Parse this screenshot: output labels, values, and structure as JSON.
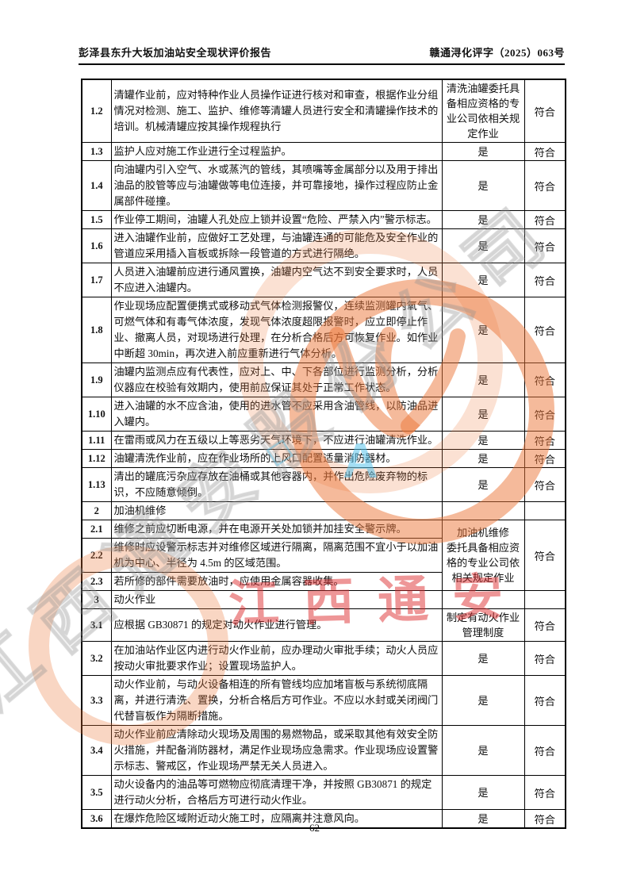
{
  "header": {
    "title_left": "彭泽县东升大坂加油站安全现状评价报告",
    "doc_number_right": "赣通浔化评字（2025）063号"
  },
  "footer": {
    "page_number": "62"
  },
  "watermark": {
    "red_text": "江西通安",
    "red_color": "#de2d30",
    "diagonal_text": "江西通安股份公司",
    "stamp_color": "#ec7637",
    "blue_mark": "A",
    "blue_diamond": "◇",
    "blue_color": "#58c2eb"
  },
  "table": {
    "rows": [
      {
        "no": "1.2",
        "desc": "清罐作业前，应对特种作业人员操作证进行核对和审查，根据作业分组情况对检测、施工、监护、维修等清罐人员进行安全和清罐操作技术的培训。机械清罐应按其操作规程执行",
        "status": "清洗油罐委托具备相应资格的专业公司依相关规定作业",
        "conclusion": "符合"
      },
      {
        "no": "1.3",
        "desc": "监护人应对施工作业进行全过程监护。",
        "status": "是",
        "conclusion": "符合"
      },
      {
        "no": "1.4",
        "desc": "向油罐内引入空气、水或蒸汽的管线，其喷嘴等金属部分以及用于排出油品的胶管等应与油罐做等电位连接，并可靠接地，操作过程应防止金属部件碰撞。",
        "status": "是",
        "conclusion": "符合"
      },
      {
        "no": "1.5",
        "desc": "作业停工期间，油罐人孔处应上锁并设置“危险、严禁入内”警示标志。",
        "status": "是",
        "conclusion": "符合"
      },
      {
        "no": "1.6",
        "desc": "进入油罐作业前，应做好工艺处理，与油罐连通的可能危及安全作业的管道应采用插入盲板或拆除一段管道的方式进行隔绝。",
        "status": "是",
        "conclusion": "符合"
      },
      {
        "no": "1.7",
        "desc": "人员进入油罐前应进行通风置换，油罐内空气达不到安全要求时，人员不应进入油罐内。",
        "status": "是",
        "conclusion": "符合"
      },
      {
        "no": "1.8",
        "desc": "作业现场应配置便携式或移动式气体检测报警仪，连续监测罐内氧气、可燃气体和有毒气体浓度，发现气体浓度超限报警时，应立即停止作业、撤离人员，对现场进行处理，在分析合格后方可恢复作业。如作业中断超 30min，再次进入前应重新进行气体分析。",
        "status": "是",
        "conclusion": "符合"
      },
      {
        "no": "1.9",
        "desc": "油罐内监测点应有代表性，应对上、中、下各部位进行监测分析，分析仪器应在校验有效期内，使用前应保证其处于正常工作状态。",
        "status": "是",
        "conclusion": "符合"
      },
      {
        "no": "1.10",
        "desc": "进入油罐的水不应含油，使用的进水管不应采用含油管线，以防油品进入罐内。",
        "status": "是",
        "conclusion": "符合"
      },
      {
        "no": "1.11",
        "desc": "在雷雨或风力在五级以上等恶劣天气环境下，不应进行油罐清洗作业。",
        "status": "是",
        "conclusion": "符合"
      },
      {
        "no": "1.12",
        "desc": "油罐清洗作业前，应在作业场所的上风口配置适量消防器材。",
        "status": "是",
        "conclusion": "符合"
      },
      {
        "no": "1.13",
        "desc": "清出的罐底污杂应存放在油桶或其他容器内，并作出危险废弃物的标识，不应随意倾倒。",
        "status": "是",
        "conclusion": "符合"
      },
      {
        "no": "2",
        "desc": "加油机维修",
        "section": true,
        "status": "",
        "conclusion": ""
      },
      {
        "no": "2.1",
        "desc": "维修之前应切断电源，并在电源开关处加锁并加挂安全警示牌。",
        "status": "加油机维修\n委托具备相应资格的专业公司依相关规定作业",
        "conclusion": "符合",
        "rowspan": 3
      },
      {
        "no": "2.2",
        "desc": "维修时应设警示标志并对维修区域进行隔离，隔离范围不宜小于以加油机为中心、半径为 4.5m 的区域范围。",
        "merged": true
      },
      {
        "no": "2.3",
        "desc": "若所修的部件需要放油时，应使用金属容器收集。",
        "merged": true
      },
      {
        "no": "3",
        "desc": "动火作业",
        "section": true,
        "status": "",
        "conclusion": ""
      },
      {
        "no": "3.1",
        "desc": "应根据 GB30871 的规定对动火作业进行管理。",
        "status": "制定有动火作业管理制度",
        "conclusion": "符合"
      },
      {
        "no": "3.2",
        "desc": "在加油站作业区内进行动火作业前，应办理动火审批手续；动火人员应按动火审批要求作业；设置现场监护人。",
        "status": "是",
        "conclusion": "符合"
      },
      {
        "no": "3.3",
        "desc": "动火作业前，与动火设备相连的所有管线均应加堵盲板与系统彻底隔离，并进行清洗、置换，分析合格后方可作业。不应以水封或关闭阀门代替盲板作为隔断措施。",
        "status": "是",
        "conclusion": "符合"
      },
      {
        "no": "3.4",
        "desc": "动火作业前应清除动火现场及周围的易燃物品，或采取其他有效安全防火措施，并配备消防器材，满足作业现场应急需求。作业现场应设置警示标志、警戒区，作业现场严禁无关人员进入。",
        "status": "是",
        "conclusion": "符合"
      },
      {
        "no": "3.5",
        "desc": "动火设备内的油品等可燃物应彻底清理干净，并按照 GB30871 的规定进行动火分析，合格后方可进行动火作业。",
        "status": "是",
        "conclusion": "符合"
      },
      {
        "no": "3.6",
        "desc": "在爆炸危险区域附近动火施工时，应隔离并注意风向。",
        "status": "是",
        "conclusion": "符合"
      }
    ]
  }
}
